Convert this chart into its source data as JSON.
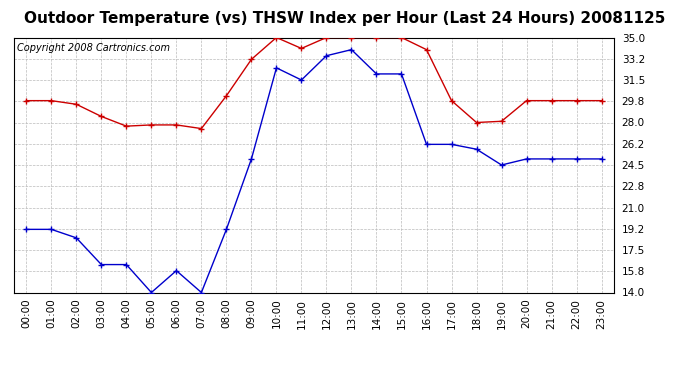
{
  "title": "Outdoor Temperature (vs) THSW Index per Hour (Last 24 Hours) 20081125",
  "copyright": "Copyright 2008 Cartronics.com",
  "hours": [
    "00:00",
    "01:00",
    "02:00",
    "03:00",
    "04:00",
    "05:00",
    "06:00",
    "07:00",
    "08:00",
    "09:00",
    "10:00",
    "11:00",
    "12:00",
    "13:00",
    "14:00",
    "15:00",
    "16:00",
    "17:00",
    "18:00",
    "19:00",
    "20:00",
    "21:00",
    "22:00",
    "23:00"
  ],
  "red_data": [
    29.8,
    29.8,
    29.5,
    28.5,
    27.7,
    27.8,
    27.8,
    27.5,
    30.2,
    33.2,
    35.0,
    34.1,
    35.0,
    35.0,
    35.0,
    35.0,
    34.0,
    29.8,
    28.0,
    28.1,
    29.8,
    29.8,
    29.8,
    29.8
  ],
  "blue_data": [
    19.2,
    19.2,
    18.5,
    16.3,
    16.3,
    14.0,
    15.8,
    14.0,
    19.2,
    25.0,
    32.5,
    31.5,
    33.5,
    34.0,
    32.0,
    32.0,
    26.2,
    26.2,
    25.8,
    24.5,
    25.0,
    25.0,
    25.0,
    25.0
  ],
  "ylim_min": 14.0,
  "ylim_max": 35.0,
  "yticks": [
    14.0,
    15.8,
    17.5,
    19.2,
    21.0,
    22.8,
    24.5,
    26.2,
    28.0,
    29.8,
    31.5,
    33.2,
    35.0
  ],
  "red_color": "#cc0000",
  "blue_color": "#0000cc",
  "background_color": "#ffffff",
  "grid_color": "#bbbbbb",
  "title_fontsize": 11,
  "copyright_fontsize": 7
}
